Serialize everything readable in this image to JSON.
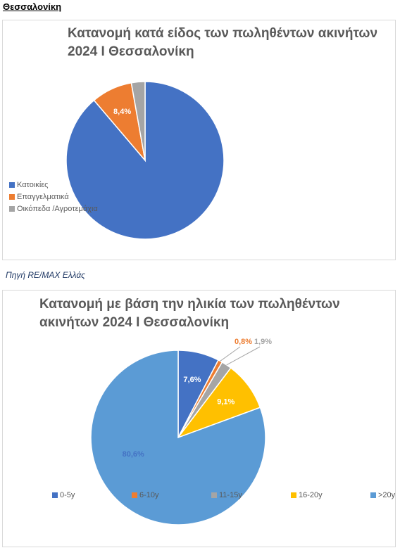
{
  "header": {
    "title": "Θεσσαλονίκη"
  },
  "chart_data": [
    {
      "type": "pie",
      "title": "Κατανομή κατά είδος των πωληθέντων ακινήτων 2024 I Θεσσαλονίκη",
      "categories": [
        "Κατοικίες",
        "Επαγγελματικά",
        "Οικόπεδα /Αγροτεμάχια"
      ],
      "values": [
        88.8,
        8.4,
        2.8
      ],
      "value_labels": [
        null,
        "8,4%",
        null
      ],
      "colors": [
        "#4472c4",
        "#ed7d31",
        "#a5a5a5"
      ],
      "legend": "left"
    },
    {
      "type": "pie",
      "title": "Κατανομή με βάση την ηλικία των πωληθέντων ακινήτων 2024 I Θεσσαλονίκη",
      "categories": [
        "0-5y",
        "6-10y",
        "11-15y",
        "16-20y",
        ">20y"
      ],
      "values": [
        7.6,
        0.8,
        1.9,
        9.1,
        80.6
      ],
      "value_labels": [
        "7,6%",
        "0,8%",
        "1,9%",
        "9,1%",
        "80,6%"
      ],
      "colors": [
        "#4472c4",
        "#ed7d31",
        "#a5a5a5",
        "#ffc000",
        "#5b9bd5"
      ],
      "legend": "bottom"
    }
  ],
  "source": "Πηγή RE/MAX Ελλάς"
}
